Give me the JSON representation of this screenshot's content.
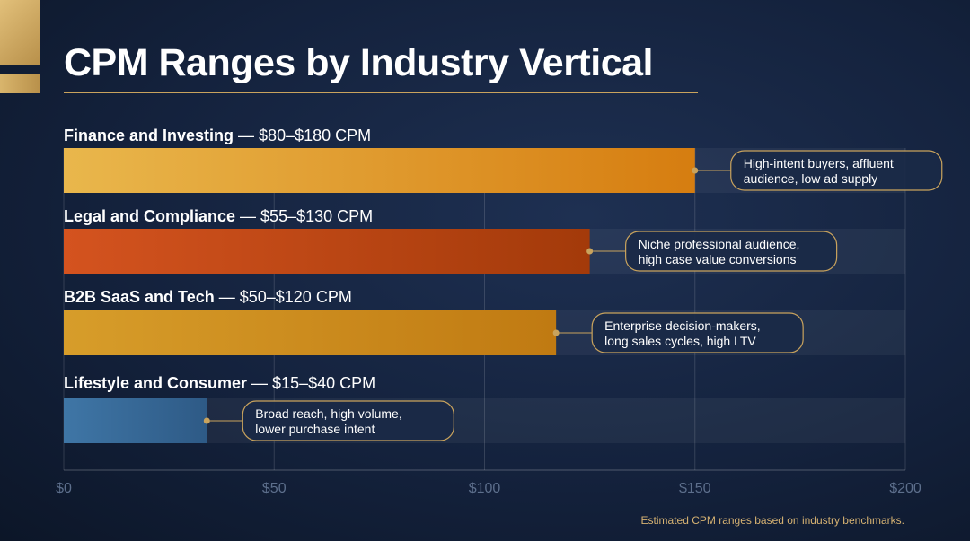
{
  "title": "CPM Ranges by Industry Vertical",
  "footnote": "Estimated CPM ranges based on industry benchmarks.",
  "colors": {
    "finance": [
      "#e9b74c",
      "#d67d10"
    ],
    "legal": [
      "#d4531f",
      "#a33a0a"
    ],
    "saas": [
      "#d79d2a",
      "#c07a12"
    ],
    "lifestyle": [
      "#3f76a6",
      "#2e5a86"
    ],
    "accent": "#c9a35d"
  },
  "chart_data": {
    "type": "bar",
    "orientation": "horizontal",
    "xlim": [
      0,
      200
    ],
    "x_ticks": [
      "$0",
      "$50",
      "$100",
      "$150",
      "$200"
    ],
    "x_tick_values": [
      0,
      50,
      100,
      150,
      200
    ],
    "grid": true,
    "categories": [
      {
        "name": "Finance and Investing",
        "range": "— $80–$180 CPM",
        "value": 150,
        "note_line1": "High-intent buyers, affluent",
        "note_line2": "audience, low ad supply",
        "color_key": "finance"
      },
      {
        "name": "Legal and Compliance",
        "range": "— $55–$130 CPM",
        "value": 125,
        "note_line1": "Niche professional audience,",
        "note_line2": "high case value conversions",
        "color_key": "legal"
      },
      {
        "name": "B2B SaaS and Tech",
        "range": "— $50–$120 CPM",
        "value": 117,
        "note_line1": "Enterprise decision-makers,",
        "note_line2": "long sales cycles, high LTV",
        "color_key": "saas"
      },
      {
        "name": "Lifestyle and Consumer",
        "range": "— $15–$40 CPM",
        "value": 34,
        "note_line1": "Broad reach, high volume,",
        "note_line2": "lower purchase intent",
        "color_key": "lifestyle"
      }
    ]
  }
}
